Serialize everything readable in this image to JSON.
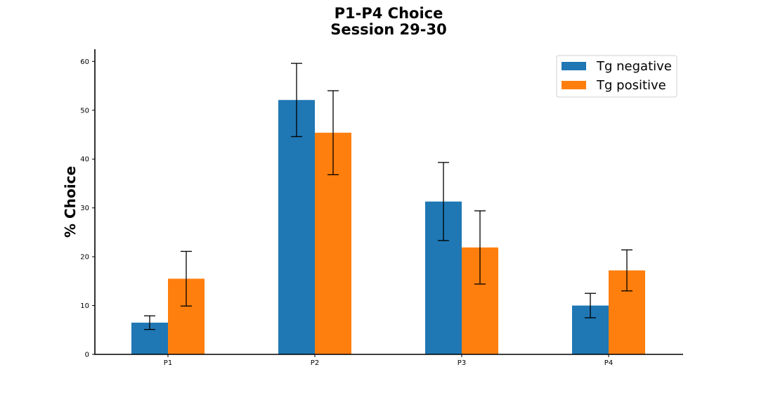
{
  "chart_data": {
    "type": "bar",
    "title": "P1-P4 Choice",
    "subtitle": "Session 29-30",
    "ylabel": "% Choice",
    "xlabel": "",
    "categories": [
      "P1",
      "P2",
      "P3",
      "P4"
    ],
    "ylim": [
      0,
      62.5
    ],
    "yticks": [
      0,
      10,
      20,
      30,
      40,
      50,
      60
    ],
    "grid": false,
    "legend_position": "top-right",
    "series": [
      {
        "name": "Tg negative",
        "color": "#1f77b4",
        "values": [
          6.5,
          52.1,
          31.3,
          10.0
        ],
        "errors": [
          1.4,
          7.5,
          8.0,
          2.5
        ]
      },
      {
        "name": "Tg positive",
        "color": "#ff7f0e",
        "values": [
          15.5,
          45.4,
          21.9,
          17.2
        ],
        "errors": [
          5.6,
          8.6,
          7.5,
          4.2
        ]
      }
    ]
  }
}
